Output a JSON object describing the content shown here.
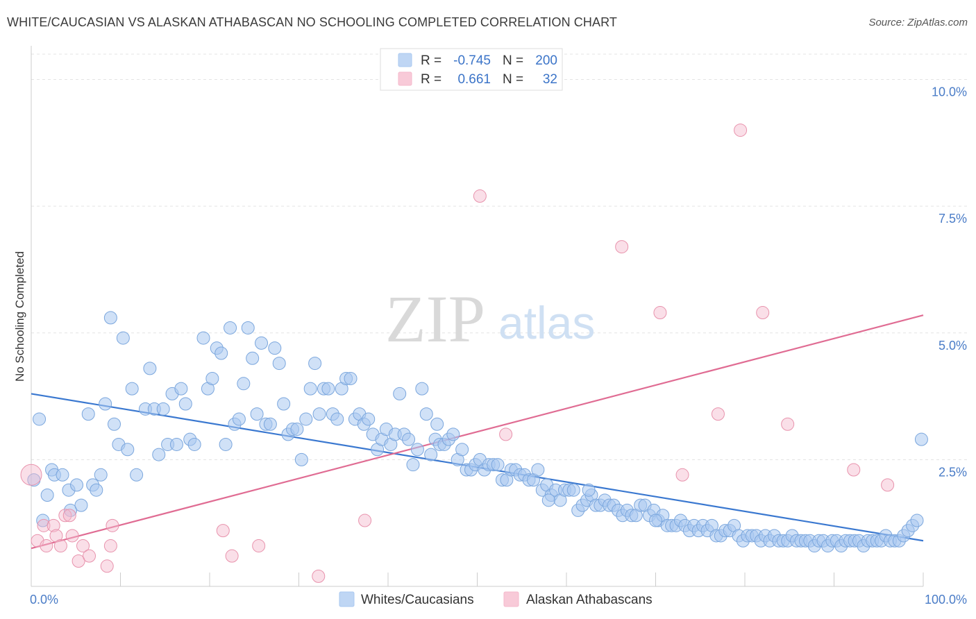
{
  "title": "WHITE/CAUCASIAN VS ALASKAN ATHABASCAN NO SCHOOLING COMPLETED CORRELATION CHART",
  "source": "Source: ZipAtlas.com",
  "watermark": {
    "zip": "ZIP",
    "atlas": "atlas"
  },
  "legend_top": {
    "rows": [
      {
        "r_label": "R =",
        "r_value": "-0.745",
        "n_label": "N =",
        "n_value": "200",
        "color": "#a9c8f0"
      },
      {
        "r_label": "R =",
        "r_value": "0.661",
        "n_label": "N =",
        "n_value": "32",
        "color": "#f5b8cb"
      }
    ]
  },
  "chart_data": {
    "type": "scatter",
    "title": "WHITE/CAUCASIAN VS ALASKAN ATHABASCAN NO SCHOOLING COMPLETED CORRELATION CHART",
    "xlabel": "",
    "ylabel": "No Schooling Completed",
    "xlim": [
      0,
      100
    ],
    "ylim": [
      0,
      10.5
    ],
    "x_tick_labels": [
      "0.0%",
      "100.0%"
    ],
    "y_ticks": [
      2.5,
      5.0,
      7.5,
      10.0
    ],
    "y_tick_labels": [
      "2.5%",
      "5.0%",
      "7.5%",
      "10.0%"
    ],
    "grid": "horizontal dashed",
    "legend_position": "bottom",
    "series": [
      {
        "name": "Whites/Caucasians",
        "color": "#a9c8f0",
        "stroke": "#7aa6dd",
        "line_color": "#3a78d0",
        "trend": {
          "x": [
            0,
            100
          ],
          "y": [
            3.8,
            0.9
          ]
        },
        "points": [
          [
            0.3,
            2.1
          ],
          [
            0.9,
            3.3
          ],
          [
            1.3,
            1.3
          ],
          [
            1.8,
            1.8
          ],
          [
            2.3,
            2.3
          ],
          [
            2.6,
            2.2
          ],
          [
            3.5,
            2.2
          ],
          [
            4.2,
            1.9
          ],
          [
            4.4,
            1.5
          ],
          [
            5.1,
            2.0
          ],
          [
            5.6,
            1.6
          ],
          [
            6.4,
            3.4
          ],
          [
            6.9,
            2.0
          ],
          [
            7.3,
            1.9
          ],
          [
            7.8,
            2.2
          ],
          [
            8.3,
            3.6
          ],
          [
            8.9,
            5.3
          ],
          [
            9.3,
            3.2
          ],
          [
            9.8,
            2.8
          ],
          [
            10.3,
            4.9
          ],
          [
            10.8,
            2.7
          ],
          [
            11.3,
            3.9
          ],
          [
            11.8,
            2.2
          ],
          [
            12.8,
            3.5
          ],
          [
            13.3,
            4.3
          ],
          [
            13.8,
            3.5
          ],
          [
            14.3,
            2.6
          ],
          [
            14.8,
            3.5
          ],
          [
            15.3,
            2.8
          ],
          [
            15.8,
            3.8
          ],
          [
            16.3,
            2.8
          ],
          [
            16.8,
            3.9
          ],
          [
            17.3,
            3.6
          ],
          [
            17.8,
            2.9
          ],
          [
            18.3,
            2.8
          ],
          [
            19.3,
            4.9
          ],
          [
            19.8,
            3.9
          ],
          [
            20.3,
            4.1
          ],
          [
            20.8,
            4.7
          ],
          [
            21.3,
            4.6
          ],
          [
            21.8,
            2.8
          ],
          [
            22.3,
            5.1
          ],
          [
            22.8,
            3.2
          ],
          [
            23.3,
            3.3
          ],
          [
            23.8,
            4.0
          ],
          [
            24.3,
            5.1
          ],
          [
            24.8,
            4.5
          ],
          [
            25.3,
            3.4
          ],
          [
            25.8,
            4.8
          ],
          [
            26.3,
            3.2
          ],
          [
            26.8,
            3.2
          ],
          [
            27.3,
            4.7
          ],
          [
            27.8,
            4.4
          ],
          [
            28.3,
            3.6
          ],
          [
            28.8,
            3.0
          ],
          [
            29.3,
            3.1
          ],
          [
            29.8,
            3.1
          ],
          [
            30.3,
            2.5
          ],
          [
            30.8,
            3.3
          ],
          [
            31.3,
            3.9
          ],
          [
            31.8,
            4.4
          ],
          [
            32.3,
            3.4
          ],
          [
            32.8,
            3.9
          ],
          [
            33.3,
            3.9
          ],
          [
            33.8,
            3.4
          ],
          [
            34.3,
            3.3
          ],
          [
            34.8,
            3.9
          ],
          [
            35.3,
            4.1
          ],
          [
            35.8,
            4.1
          ],
          [
            36.3,
            3.3
          ],
          [
            36.8,
            3.4
          ],
          [
            37.3,
            3.2
          ],
          [
            37.8,
            3.3
          ],
          [
            38.3,
            3.0
          ],
          [
            38.8,
            2.7
          ],
          [
            39.3,
            2.9
          ],
          [
            39.8,
            3.1
          ],
          [
            40.3,
            2.8
          ],
          [
            40.8,
            3.0
          ],
          [
            41.3,
            3.8
          ],
          [
            41.8,
            3.0
          ],
          [
            42.3,
            2.9
          ],
          [
            42.8,
            2.4
          ],
          [
            43.3,
            2.7
          ],
          [
            43.8,
            3.9
          ],
          [
            44.3,
            3.4
          ],
          [
            44.8,
            2.6
          ],
          [
            45.3,
            2.9
          ],
          [
            45.8,
            2.8
          ],
          [
            46.3,
            2.8
          ],
          [
            46.8,
            2.9
          ],
          [
            47.3,
            3.0
          ],
          [
            47.8,
            2.5
          ],
          [
            48.3,
            2.7
          ],
          [
            48.8,
            2.3
          ],
          [
            49.3,
            2.3
          ],
          [
            49.8,
            2.4
          ],
          [
            50.3,
            2.5
          ],
          [
            50.8,
            2.3
          ],
          [
            51.3,
            2.4
          ],
          [
            51.8,
            2.4
          ],
          [
            52.3,
            2.4
          ],
          [
            52.8,
            2.1
          ],
          [
            53.3,
            2.1
          ],
          [
            53.8,
            2.3
          ],
          [
            54.3,
            2.3
          ],
          [
            54.8,
            2.2
          ],
          [
            55.3,
            2.2
          ],
          [
            55.8,
            2.1
          ],
          [
            56.3,
            2.1
          ],
          [
            56.8,
            2.3
          ],
          [
            57.3,
            1.9
          ],
          [
            57.8,
            2.0
          ],
          [
            58.3,
            1.8
          ],
          [
            58.8,
            1.9
          ],
          [
            59.3,
            1.7
          ],
          [
            59.8,
            1.9
          ],
          [
            60.3,
            1.9
          ],
          [
            60.8,
            1.9
          ],
          [
            61.3,
            1.5
          ],
          [
            61.8,
            1.6
          ],
          [
            62.3,
            1.7
          ],
          [
            62.8,
            1.8
          ],
          [
            63.3,
            1.6
          ],
          [
            63.8,
            1.6
          ],
          [
            64.3,
            1.7
          ],
          [
            64.8,
            1.6
          ],
          [
            65.3,
            1.6
          ],
          [
            65.8,
            1.5
          ],
          [
            66.3,
            1.4
          ],
          [
            66.8,
            1.5
          ],
          [
            67.3,
            1.4
          ],
          [
            67.8,
            1.4
          ],
          [
            68.3,
            1.6
          ],
          [
            68.8,
            1.6
          ],
          [
            69.3,
            1.4
          ],
          [
            69.8,
            1.5
          ],
          [
            70.3,
            1.3
          ],
          [
            70.8,
            1.4
          ],
          [
            71.3,
            1.2
          ],
          [
            71.8,
            1.2
          ],
          [
            72.3,
            1.2
          ],
          [
            72.8,
            1.3
          ],
          [
            73.3,
            1.2
          ],
          [
            73.8,
            1.1
          ],
          [
            74.3,
            1.2
          ],
          [
            74.8,
            1.1
          ],
          [
            75.3,
            1.2
          ],
          [
            75.8,
            1.1
          ],
          [
            76.3,
            1.2
          ],
          [
            76.8,
            1.0
          ],
          [
            77.3,
            1.0
          ],
          [
            77.8,
            1.1
          ],
          [
            78.3,
            1.1
          ],
          [
            78.8,
            1.2
          ],
          [
            79.3,
            1.0
          ],
          [
            79.8,
            0.9
          ],
          [
            80.3,
            1.0
          ],
          [
            80.8,
            1.0
          ],
          [
            81.3,
            1.0
          ],
          [
            81.8,
            0.9
          ],
          [
            82.3,
            1.0
          ],
          [
            82.8,
            0.9
          ],
          [
            83.3,
            1.0
          ],
          [
            83.8,
            0.9
          ],
          [
            84.3,
            0.9
          ],
          [
            84.8,
            0.9
          ],
          [
            85.3,
            1.0
          ],
          [
            85.8,
            0.9
          ],
          [
            86.3,
            0.9
          ],
          [
            86.8,
            0.9
          ],
          [
            87.3,
            0.9
          ],
          [
            87.8,
            0.8
          ],
          [
            88.3,
            0.9
          ],
          [
            88.8,
            0.9
          ],
          [
            89.3,
            0.8
          ],
          [
            89.8,
            0.9
          ],
          [
            90.3,
            0.9
          ],
          [
            90.8,
            0.8
          ],
          [
            91.3,
            0.9
          ],
          [
            91.8,
            0.9
          ],
          [
            92.3,
            0.9
          ],
          [
            92.8,
            0.9
          ],
          [
            93.3,
            0.8
          ],
          [
            93.8,
            0.9
          ],
          [
            94.3,
            0.9
          ],
          [
            94.8,
            0.9
          ],
          [
            95.3,
            0.9
          ],
          [
            95.8,
            1.0
          ],
          [
            96.3,
            0.9
          ],
          [
            96.8,
            0.9
          ],
          [
            97.3,
            0.9
          ],
          [
            97.8,
            1.0
          ],
          [
            98.3,
            1.1
          ],
          [
            98.8,
            1.2
          ],
          [
            99.3,
            1.3
          ],
          [
            99.8,
            2.9
          ],
          [
            45.5,
            3.2
          ],
          [
            58.0,
            1.7
          ],
          [
            62.5,
            1.9
          ],
          [
            70.0,
            1.3
          ]
        ]
      },
      {
        "name": "Alaskan Athabascans",
        "color": "#f5b8cb",
        "stroke": "#e892ac",
        "line_color": "#e06c93",
        "trend": {
          "x": [
            0,
            100
          ],
          "y": [
            0.75,
            5.35
          ]
        },
        "points": [
          [
            0.0,
            2.2
          ],
          [
            0.7,
            0.9
          ],
          [
            1.4,
            1.2
          ],
          [
            1.7,
            0.8
          ],
          [
            2.5,
            1.2
          ],
          [
            2.8,
            1.0
          ],
          [
            3.3,
            0.8
          ],
          [
            3.8,
            1.4
          ],
          [
            4.3,
            1.4
          ],
          [
            4.6,
            1.0
          ],
          [
            5.3,
            0.5
          ],
          [
            5.8,
            0.8
          ],
          [
            6.5,
            0.6
          ],
          [
            8.5,
            0.4
          ],
          [
            8.9,
            0.8
          ],
          [
            9.1,
            1.2
          ],
          [
            21.5,
            1.1
          ],
          [
            22.5,
            0.6
          ],
          [
            25.5,
            0.8
          ],
          [
            32.2,
            0.2
          ],
          [
            37.4,
            1.3
          ],
          [
            50.3,
            7.7
          ],
          [
            66.2,
            6.7
          ],
          [
            53.2,
            3.0
          ],
          [
            73.0,
            2.2
          ],
          [
            70.5,
            5.4
          ],
          [
            77.0,
            3.4
          ],
          [
            79.5,
            9.0
          ],
          [
            82.0,
            5.4
          ],
          [
            84.8,
            3.2
          ],
          [
            92.2,
            2.3
          ],
          [
            96.0,
            2.0
          ]
        ]
      }
    ]
  },
  "bottom_legend": [
    {
      "label": "Whites/Caucasians",
      "color": "#a9c8f0"
    },
    {
      "label": "Alaskan Athabascans",
      "color": "#f5b8cb"
    }
  ]
}
